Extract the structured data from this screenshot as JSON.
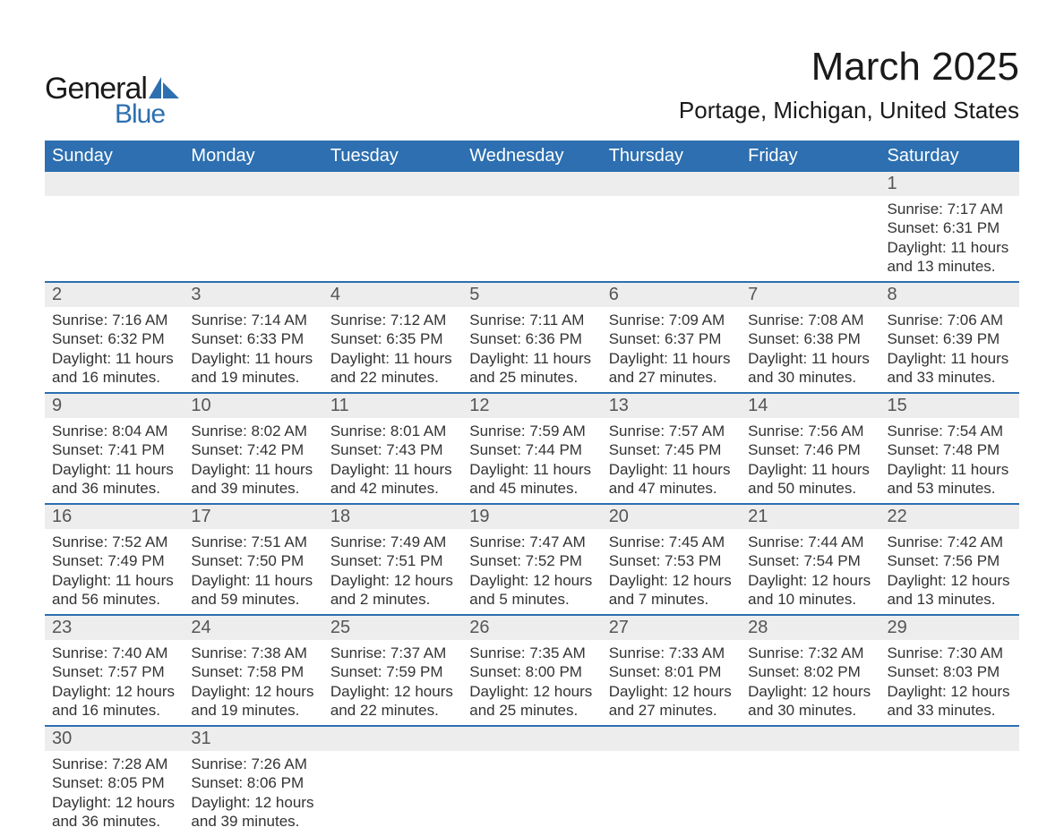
{
  "brand": {
    "word1": "General",
    "word2": "Blue",
    "logo_color": "#2d6fb0",
    "text_color": "#1a1a1a"
  },
  "title": "March 2025",
  "location": "Portage, Michigan, United States",
  "colors": {
    "header_bg": "#2d6fb0",
    "header_text": "#ffffff",
    "daynum_bg": "#ededed",
    "body_text": "#333333",
    "border": "#2d6fb0"
  },
  "typography": {
    "title_fontsize": 44,
    "location_fontsize": 26,
    "weekday_fontsize": 20,
    "daynum_fontsize": 20,
    "body_fontsize": 17
  },
  "weekdays": [
    "Sunday",
    "Monday",
    "Tuesday",
    "Wednesday",
    "Thursday",
    "Friday",
    "Saturday"
  ],
  "weeks": [
    [
      null,
      null,
      null,
      null,
      null,
      null,
      {
        "n": "1",
        "sunrise": "Sunrise: 7:17 AM",
        "sunset": "Sunset: 6:31 PM",
        "daylight": "Daylight: 11 hours and 13 minutes."
      }
    ],
    [
      {
        "n": "2",
        "sunrise": "Sunrise: 7:16 AM",
        "sunset": "Sunset: 6:32 PM",
        "daylight": "Daylight: 11 hours and 16 minutes."
      },
      {
        "n": "3",
        "sunrise": "Sunrise: 7:14 AM",
        "sunset": "Sunset: 6:33 PM",
        "daylight": "Daylight: 11 hours and 19 minutes."
      },
      {
        "n": "4",
        "sunrise": "Sunrise: 7:12 AM",
        "sunset": "Sunset: 6:35 PM",
        "daylight": "Daylight: 11 hours and 22 minutes."
      },
      {
        "n": "5",
        "sunrise": "Sunrise: 7:11 AM",
        "sunset": "Sunset: 6:36 PM",
        "daylight": "Daylight: 11 hours and 25 minutes."
      },
      {
        "n": "6",
        "sunrise": "Sunrise: 7:09 AM",
        "sunset": "Sunset: 6:37 PM",
        "daylight": "Daylight: 11 hours and 27 minutes."
      },
      {
        "n": "7",
        "sunrise": "Sunrise: 7:08 AM",
        "sunset": "Sunset: 6:38 PM",
        "daylight": "Daylight: 11 hours and 30 minutes."
      },
      {
        "n": "8",
        "sunrise": "Sunrise: 7:06 AM",
        "sunset": "Sunset: 6:39 PM",
        "daylight": "Daylight: 11 hours and 33 minutes."
      }
    ],
    [
      {
        "n": "9",
        "sunrise": "Sunrise: 8:04 AM",
        "sunset": "Sunset: 7:41 PM",
        "daylight": "Daylight: 11 hours and 36 minutes."
      },
      {
        "n": "10",
        "sunrise": "Sunrise: 8:02 AM",
        "sunset": "Sunset: 7:42 PM",
        "daylight": "Daylight: 11 hours and 39 minutes."
      },
      {
        "n": "11",
        "sunrise": "Sunrise: 8:01 AM",
        "sunset": "Sunset: 7:43 PM",
        "daylight": "Daylight: 11 hours and 42 minutes."
      },
      {
        "n": "12",
        "sunrise": "Sunrise: 7:59 AM",
        "sunset": "Sunset: 7:44 PM",
        "daylight": "Daylight: 11 hours and 45 minutes."
      },
      {
        "n": "13",
        "sunrise": "Sunrise: 7:57 AM",
        "sunset": "Sunset: 7:45 PM",
        "daylight": "Daylight: 11 hours and 47 minutes."
      },
      {
        "n": "14",
        "sunrise": "Sunrise: 7:56 AM",
        "sunset": "Sunset: 7:46 PM",
        "daylight": "Daylight: 11 hours and 50 minutes."
      },
      {
        "n": "15",
        "sunrise": "Sunrise: 7:54 AM",
        "sunset": "Sunset: 7:48 PM",
        "daylight": "Daylight: 11 hours and 53 minutes."
      }
    ],
    [
      {
        "n": "16",
        "sunrise": "Sunrise: 7:52 AM",
        "sunset": "Sunset: 7:49 PM",
        "daylight": "Daylight: 11 hours and 56 minutes."
      },
      {
        "n": "17",
        "sunrise": "Sunrise: 7:51 AM",
        "sunset": "Sunset: 7:50 PM",
        "daylight": "Daylight: 11 hours and 59 minutes."
      },
      {
        "n": "18",
        "sunrise": "Sunrise: 7:49 AM",
        "sunset": "Sunset: 7:51 PM",
        "daylight": "Daylight: 12 hours and 2 minutes."
      },
      {
        "n": "19",
        "sunrise": "Sunrise: 7:47 AM",
        "sunset": "Sunset: 7:52 PM",
        "daylight": "Daylight: 12 hours and 5 minutes."
      },
      {
        "n": "20",
        "sunrise": "Sunrise: 7:45 AM",
        "sunset": "Sunset: 7:53 PM",
        "daylight": "Daylight: 12 hours and 7 minutes."
      },
      {
        "n": "21",
        "sunrise": "Sunrise: 7:44 AM",
        "sunset": "Sunset: 7:54 PM",
        "daylight": "Daylight: 12 hours and 10 minutes."
      },
      {
        "n": "22",
        "sunrise": "Sunrise: 7:42 AM",
        "sunset": "Sunset: 7:56 PM",
        "daylight": "Daylight: 12 hours and 13 minutes."
      }
    ],
    [
      {
        "n": "23",
        "sunrise": "Sunrise: 7:40 AM",
        "sunset": "Sunset: 7:57 PM",
        "daylight": "Daylight: 12 hours and 16 minutes."
      },
      {
        "n": "24",
        "sunrise": "Sunrise: 7:38 AM",
        "sunset": "Sunset: 7:58 PM",
        "daylight": "Daylight: 12 hours and 19 minutes."
      },
      {
        "n": "25",
        "sunrise": "Sunrise: 7:37 AM",
        "sunset": "Sunset: 7:59 PM",
        "daylight": "Daylight: 12 hours and 22 minutes."
      },
      {
        "n": "26",
        "sunrise": "Sunrise: 7:35 AM",
        "sunset": "Sunset: 8:00 PM",
        "daylight": "Daylight: 12 hours and 25 minutes."
      },
      {
        "n": "27",
        "sunrise": "Sunrise: 7:33 AM",
        "sunset": "Sunset: 8:01 PM",
        "daylight": "Daylight: 12 hours and 27 minutes."
      },
      {
        "n": "28",
        "sunrise": "Sunrise: 7:32 AM",
        "sunset": "Sunset: 8:02 PM",
        "daylight": "Daylight: 12 hours and 30 minutes."
      },
      {
        "n": "29",
        "sunrise": "Sunrise: 7:30 AM",
        "sunset": "Sunset: 8:03 PM",
        "daylight": "Daylight: 12 hours and 33 minutes."
      }
    ],
    [
      {
        "n": "30",
        "sunrise": "Sunrise: 7:28 AM",
        "sunset": "Sunset: 8:05 PM",
        "daylight": "Daylight: 12 hours and 36 minutes."
      },
      {
        "n": "31",
        "sunrise": "Sunrise: 7:26 AM",
        "sunset": "Sunset: 8:06 PM",
        "daylight": "Daylight: 12 hours and 39 minutes."
      },
      null,
      null,
      null,
      null,
      null
    ]
  ]
}
